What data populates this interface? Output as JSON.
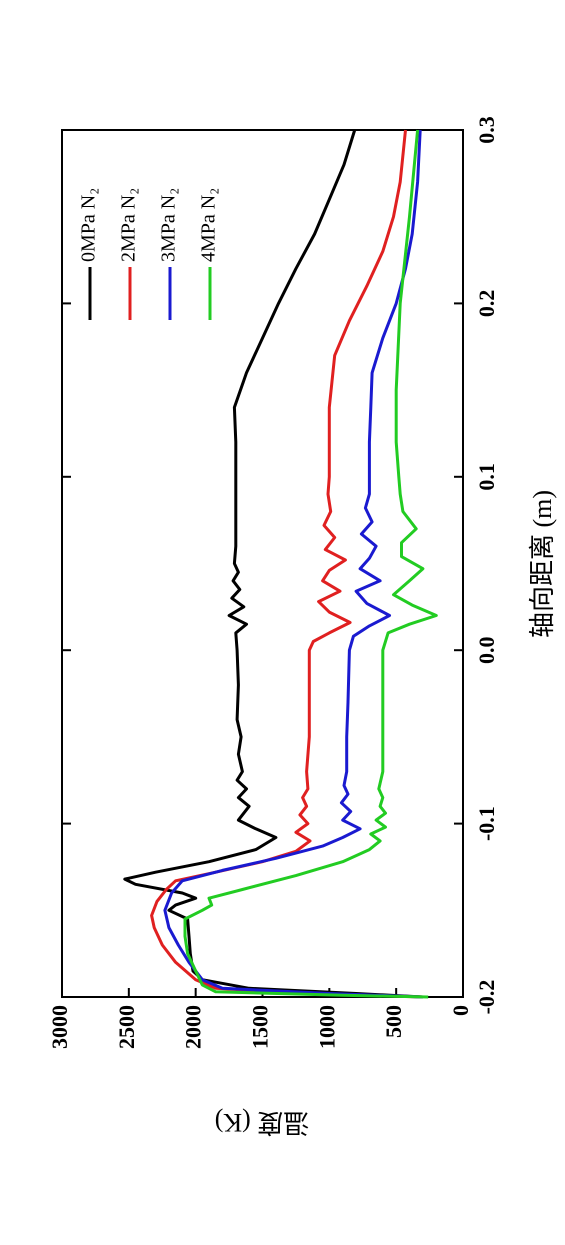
{
  "chart_data": {
    "type": "line",
    "xlabel": "轴向距离 (m)",
    "ylabel": "温度 (K)",
    "xlim": [
      -0.2,
      0.3
    ],
    "xticks": [
      -0.2,
      -0.1,
      {
        "value": 0,
        "label": "0.0"
      },
      0.1,
      0.2,
      0.3
    ],
    "ylim": [
      0,
      3000
    ],
    "yticks": [
      0,
      500,
      1000,
      1500,
      2000,
      2500,
      3000
    ],
    "legend": "top-right",
    "series": [
      {
        "name": "0MPa N₂",
        "color": "#000000",
        "x": [
          -0.2,
          -0.198,
          -0.195,
          -0.19,
          -0.185,
          -0.175,
          -0.165,
          -0.155,
          -0.15,
          -0.147,
          -0.143,
          -0.14,
          -0.135,
          -0.132,
          -0.128,
          -0.122,
          -0.115,
          -0.108,
          -0.103,
          -0.098,
          -0.09,
          -0.085,
          -0.08,
          -0.075,
          -0.07,
          -0.06,
          -0.05,
          -0.04,
          -0.02,
          0,
          0.01,
          0.015,
          0.02,
          0.025,
          0.03,
          0.035,
          0.04,
          0.045,
          0.05,
          0.06,
          0.07,
          0.08,
          0.1,
          0.12,
          0.14,
          0.16,
          0.18,
          0.2,
          0.22,
          0.24,
          0.26,
          0.28,
          0.3
        ],
        "values": [
          300,
          800,
          1600,
          1950,
          2020,
          2040,
          2050,
          2060,
          2200,
          2150,
          2000,
          2100,
          2450,
          2530,
          2300,
          1900,
          1550,
          1400,
          1550,
          1680,
          1600,
          1680,
          1620,
          1690,
          1650,
          1680,
          1660,
          1690,
          1680,
          1690,
          1700,
          1620,
          1750,
          1640,
          1730,
          1670,
          1720,
          1680,
          1710,
          1700,
          1700,
          1700,
          1700,
          1700,
          1710,
          1620,
          1500,
          1380,
          1250,
          1110,
          1000,
          890,
          810
        ]
      },
      {
        "name": "2MPa N₂",
        "color": "#e02020",
        "x": [
          -0.2,
          -0.198,
          -0.195,
          -0.19,
          -0.18,
          -0.17,
          -0.16,
          -0.153,
          -0.145,
          -0.138,
          -0.133,
          -0.128,
          -0.122,
          -0.116,
          -0.11,
          -0.105,
          -0.1,
          -0.095,
          -0.09,
          -0.085,
          -0.08,
          -0.07,
          -0.05,
          -0.03,
          0,
          0.005,
          0.01,
          0.016,
          0.022,
          0.028,
          0.034,
          0.04,
          0.046,
          0.052,
          0.058,
          0.065,
          0.072,
          0.08,
          0.09,
          0.1,
          0.12,
          0.14,
          0.17,
          0.19,
          0.21,
          0.23,
          0.25,
          0.27,
          0.3
        ],
        "values": [
          300,
          1200,
          1850,
          2000,
          2150,
          2250,
          2310,
          2330,
          2290,
          2220,
          2150,
          1850,
          1500,
          1250,
          1145,
          1250,
          1160,
          1220,
          1170,
          1200,
          1160,
          1170,
          1150,
          1150,
          1150,
          1120,
          1000,
          845,
          1000,
          1080,
          920,
          1050,
          1000,
          880,
          1030,
          960,
          1040,
          990,
          1010,
          1000,
          1000,
          1000,
          960,
          850,
          720,
          600,
          520,
          470,
          430
        ]
      },
      {
        "name": "3MPa N₂",
        "color": "#1a1ad0",
        "x": [
          -0.2,
          -0.198,
          -0.195,
          -0.19,
          -0.18,
          -0.17,
          -0.16,
          -0.15,
          -0.14,
          -0.133,
          -0.127,
          -0.12,
          -0.113,
          -0.108,
          -0.103,
          -0.098,
          -0.093,
          -0.088,
          -0.083,
          -0.078,
          -0.07,
          -0.05,
          -0.03,
          0,
          0.008,
          0.014,
          0.02,
          0.027,
          0.034,
          0.04,
          0.047,
          0.053,
          0.06,
          0.067,
          0.074,
          0.082,
          0.09,
          0.1,
          0.12,
          0.14,
          0.16,
          0.18,
          0.2,
          0.22,
          0.24,
          0.27,
          0.3
        ],
        "values": [
          300,
          1000,
          1800,
          1950,
          2050,
          2130,
          2200,
          2230,
          2180,
          2100,
          1800,
          1400,
          1050,
          900,
          770,
          900,
          840,
          910,
          860,
          890,
          870,
          870,
          860,
          850,
          820,
          700,
          550,
          720,
          800,
          620,
          770,
          700,
          650,
          760,
          680,
          730,
          700,
          700,
          700,
          690,
          680,
          600,
          500,
          430,
          380,
          340,
          320
        ]
      },
      {
        "name": "4MPa N₂",
        "color": "#22cc22",
        "x": [
          -0.2,
          -0.199,
          -0.197,
          -0.193,
          -0.185,
          -0.175,
          -0.165,
          -0.155,
          -0.15,
          -0.147,
          -0.143,
          -0.138,
          -0.13,
          -0.122,
          -0.115,
          -0.11,
          -0.106,
          -0.102,
          -0.098,
          -0.094,
          -0.09,
          -0.085,
          -0.08,
          -0.07,
          -0.05,
          -0.03,
          0,
          0.01,
          0.015,
          0.02,
          0.026,
          0.032,
          0.04,
          0.047,
          0.054,
          0.062,
          0.07,
          0.08,
          0.09,
          0.1,
          0.12,
          0.15,
          0.2,
          0.25,
          0.3
        ],
        "values": [
          260,
          900,
          1850,
          1950,
          2000,
          2060,
          2080,
          2080,
          1950,
          1880,
          1900,
          1650,
          1250,
          900,
          700,
          620,
          690,
          580,
          650,
          580,
          620,
          600,
          630,
          600,
          600,
          600,
          600,
          560,
          400,
          200,
          380,
          520,
          400,
          300,
          460,
          460,
          350,
          450,
          470,
          480,
          500,
          500,
          470,
          400,
          340
        ]
      }
    ]
  }
}
